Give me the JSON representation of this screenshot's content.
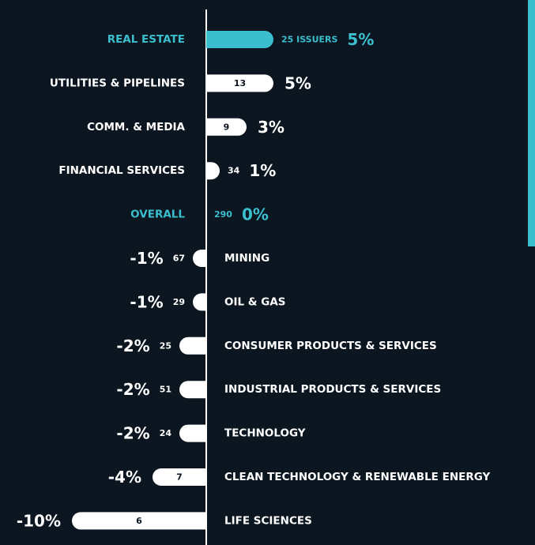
{
  "chart_data": {
    "type": "diverging-bar",
    "categories": [
      "REAL ESTATE",
      "UTILITIES & PIPELINES",
      "COMM. & MEDIA",
      "FINANCIAL SERVICES",
      "OVERALL",
      "MINING",
      "OIL & GAS",
      "CONSUMER PRODUCTS & SERVICES",
      "INDUSTRIAL PRODUCTS & SERVICES",
      "TECHNOLOGY",
      "CLEAN TECHNOLOGY & RENEWABLE ENERGY",
      "LIFE SCIENCES"
    ],
    "values": [
      5,
      5,
      3,
      1,
      0,
      -1,
      -1,
      -2,
      -2,
      -2,
      -4,
      -10
    ],
    "value_labels": [
      "5%",
      "5%",
      "3%",
      "1%",
      "0%",
      "-1%",
      "-1%",
      "-2%",
      "-2%",
      "-2%",
      "-4%",
      "-10%"
    ],
    "issuers": [
      {
        "value": 25,
        "label": "25 ISSUERS"
      },
      13,
      9,
      34,
      290,
      67,
      29,
      25,
      51,
      24,
      7,
      6
    ],
    "color": "#ffffff",
    "highlight_color": "#3bbfcf",
    "highlight": [
      0,
      4
    ]
  }
}
